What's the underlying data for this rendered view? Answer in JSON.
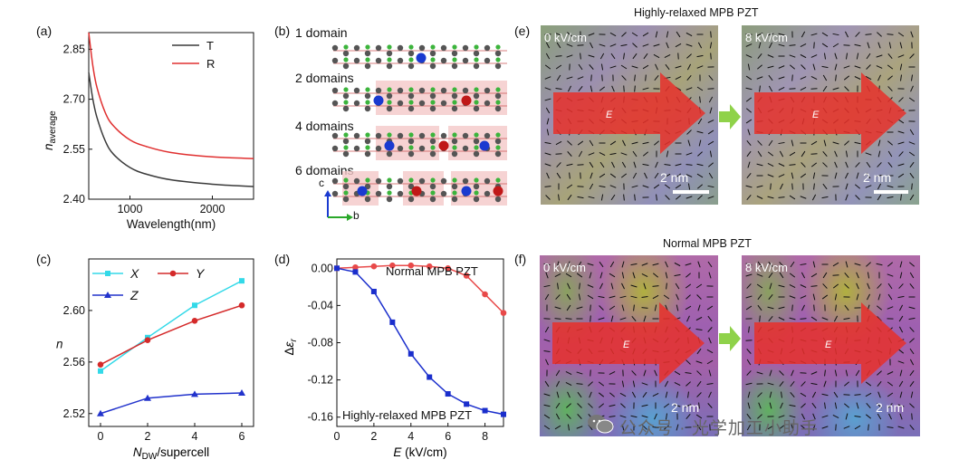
{
  "panel_labels": {
    "a": "(a)",
    "b": "(b)",
    "c": "(c)",
    "d": "(d)",
    "e": "(e)",
    "f": "(f)"
  },
  "panel_a": {
    "xlabel": "Wavelength(nm)",
    "ylabel_main": "n",
    "ylabel_sub": "average",
    "legend": [
      "T",
      "R"
    ],
    "yticks": [
      "2.85",
      "2.70",
      "2.55",
      "2.40"
    ],
    "xticks": [
      "1000",
      "2000"
    ]
  },
  "panel_b": {
    "rows": [
      "1 domain",
      "2 domains",
      "4 domains",
      "6 domains"
    ],
    "axes": {
      "c": "c",
      "b": "b"
    }
  },
  "panel_e": {
    "title": "Highly-relaxed MPB PZT",
    "fields": [
      "0 kV/cm",
      "8 kV/cm"
    ],
    "arrow_label": "E",
    "scale": "2 nm"
  },
  "panel_f": {
    "title": "Normal MPB PZT",
    "fields": [
      "0 kV/cm",
      "8 kV/cm"
    ],
    "arrow_label": "E",
    "scale": "2 nm"
  },
  "watermark": "公众号 · 光学加工小助手",
  "colors": {
    "T": "#3a3a3a",
    "R": "#e03030",
    "X": "#33d9e8",
    "Y": "#d42a2a",
    "Z": "#2233cc",
    "Normal": "#e84a4a",
    "Relaxed": "#1a2ecc",
    "arrow": "#e8302a",
    "green_arrow": "#8fd24a"
  },
  "chart_data": [
    {
      "id": "a",
      "type": "line",
      "title": "",
      "xlabel": "Wavelength(nm)",
      "ylabel": "n_average",
      "xlim": [
        500,
        2500
      ],
      "ylim": [
        2.4,
        2.9
      ],
      "series": [
        {
          "name": "T",
          "x": [
            500,
            550,
            600,
            700,
            800,
            1000,
            1200,
            1500,
            2000,
            2500
          ],
          "values": [
            2.78,
            2.7,
            2.645,
            2.575,
            2.535,
            2.495,
            2.475,
            2.458,
            2.445,
            2.438
          ]
        },
        {
          "name": "R",
          "x": [
            500,
            550,
            600,
            700,
            800,
            1000,
            1200,
            1500,
            2000,
            2500
          ],
          "values": [
            2.9,
            2.8,
            2.735,
            2.66,
            2.62,
            2.578,
            2.558,
            2.54,
            2.527,
            2.522
          ]
        }
      ]
    },
    {
      "id": "c",
      "type": "line",
      "xlabel": "N_DW/supercell",
      "ylabel": "n",
      "xlim": [
        -0.5,
        6.5
      ],
      "ylim": [
        2.51,
        2.64
      ],
      "x": [
        0,
        2,
        4,
        6
      ],
      "categories": [
        "0",
        "2",
        "4",
        "6"
      ],
      "yticks": [
        "2.52",
        "2.56",
        "2.60"
      ],
      "series": [
        {
          "name": "X",
          "values": [
            2.553,
            2.579,
            2.604,
            2.623
          ]
        },
        {
          "name": "Y",
          "values": [
            2.558,
            2.577,
            2.592,
            2.604
          ]
        },
        {
          "name": "Z",
          "values": [
            2.52,
            2.532,
            2.535,
            2.536
          ]
        }
      ]
    },
    {
      "id": "d",
      "type": "line",
      "xlabel": "E (kV/cm)",
      "ylabel": "Δε_r",
      "xlim": [
        0,
        9
      ],
      "ylim": [
        -0.17,
        0.01
      ],
      "x": [
        0,
        1,
        2,
        3,
        4,
        5,
        6,
        7,
        8,
        9
      ],
      "yticks": [
        "0.00",
        "-0.04",
        "-0.08",
        "-0.12",
        "-0.16"
      ],
      "xticks": [
        "0",
        "2",
        "4",
        "6",
        "8"
      ],
      "annotations": [
        "Normal MPB PZT",
        "Highly-relaxed MPB PZT"
      ],
      "series": [
        {
          "name": "Normal MPB PZT",
          "values": [
            0.0,
            0.001,
            0.002,
            0.003,
            0.003,
            0.002,
            0.0,
            -0.008,
            -0.028,
            -0.048
          ]
        },
        {
          "name": "Highly-relaxed MPB PZT",
          "values": [
            0.0,
            -0.004,
            -0.025,
            -0.058,
            -0.092,
            -0.117,
            -0.135,
            -0.146,
            -0.153,
            -0.157
          ]
        }
      ]
    }
  ]
}
